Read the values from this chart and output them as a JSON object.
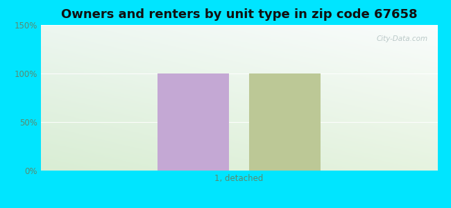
{
  "title": "Owners and renters by unit type in zip code 67658",
  "categories": [
    "1, detached"
  ],
  "owner_values": [
    100
  ],
  "renter_values": [
    100
  ],
  "owner_color": "#c4a8d4",
  "renter_color": "#bcc896",
  "ylim": [
    0,
    150
  ],
  "yticks": [
    0,
    50,
    100,
    150
  ],
  "ytick_labels": [
    "0%",
    "50%",
    "100%",
    "150%"
  ],
  "watermark": "City-Data.com",
  "bar_width": 0.18,
  "bar_gap": 0.05,
  "title_fontsize": 13,
  "outer_bg": "#00e5ff",
  "tick_color": "#5a8a70"
}
